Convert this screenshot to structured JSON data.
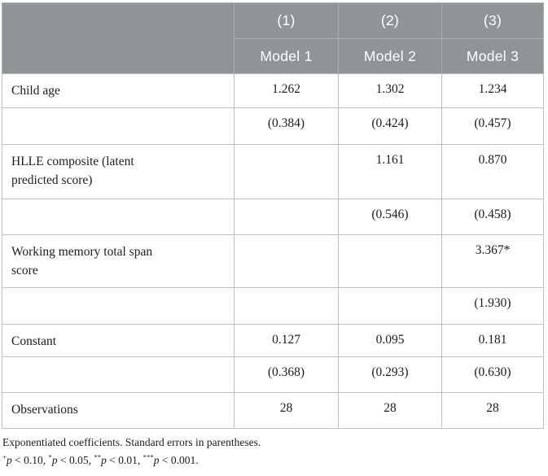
{
  "colors": {
    "header_bg": "#8f9496",
    "header_text": "#ffffff",
    "header_border": "#aab0b2",
    "body_border": "#bcc0c0",
    "body_text": "#1c1c1c"
  },
  "table": {
    "header": {
      "numbers": [
        "(1)",
        "(2)",
        "(3)"
      ],
      "models": [
        "Model 1",
        "Model 2",
        "Model 3"
      ]
    },
    "rows": [
      {
        "label": "Child age",
        "m1": "1.262",
        "m2": "1.302",
        "m3": "1.234"
      },
      {
        "label": "",
        "m1": "(0.384)",
        "m2": "(0.424)",
        "m3": "(0.457)"
      },
      {
        "label": "HLLE composite (latent predicted score)",
        "m1": "",
        "m2": "1.161",
        "m3": "0.870"
      },
      {
        "label": "",
        "m1": "",
        "m2": "(0.546)",
        "m3": "(0.458)"
      },
      {
        "label": "Working memory total span score",
        "m1": "",
        "m2": "",
        "m3": "3.367*"
      },
      {
        "label": "",
        "m1": "",
        "m2": "",
        "m3": "(1.930)"
      },
      {
        "label": "Constant",
        "m1": "0.127",
        "m2": "0.095",
        "m3": "0.181"
      },
      {
        "label": "",
        "m1": "(0.368)",
        "m2": "(0.293)",
        "m3": "(0.630)"
      },
      {
        "label": "Observations",
        "m1": "28",
        "m2": "28",
        "m3": "28"
      }
    ],
    "notes": {
      "line1": "Exponentiated coefficients. Standard errors in parentheses.",
      "line2_segments": [
        {
          "sup": "+"
        },
        {
          "i": "p"
        },
        {
          "t": " < 0.10, "
        },
        {
          "sup": "*"
        },
        {
          "i": "p"
        },
        {
          "t": " < 0.05, "
        },
        {
          "sup": "**"
        },
        {
          "i": "p"
        },
        {
          "t": " < 0.01, "
        },
        {
          "sup": "***"
        },
        {
          "i": "p"
        },
        {
          "t": " < 0.001."
        }
      ]
    }
  }
}
